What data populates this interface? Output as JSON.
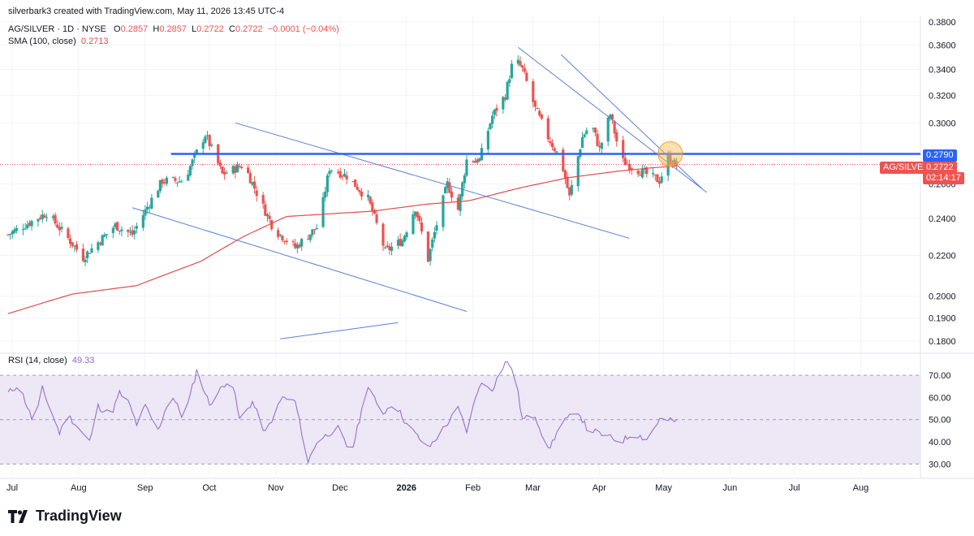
{
  "header": {
    "created_by": "silverbark3 created with TradingView.com, May 11, 2026 13:45 UTC-4",
    "symbol_line": "AG/SILVER · 1D · NYSE",
    "ohlc": {
      "o_label": "O",
      "o": "0.2857",
      "h_label": "H",
      "h": "0.2857",
      "l_label": "L",
      "l": "0.2722",
      "c_label": "C",
      "c": "0.2722",
      "chg": "−0.0001 (−0.04%)"
    },
    "sma_label": "SMA (100, close)",
    "sma_value": "0.2713",
    "rsi_label": "RSI (14, close)",
    "rsi_value": "49.33"
  },
  "price_tags": {
    "resistance": "0.2790",
    "symbol": "AG/SILVER",
    "last": "0.2722",
    "countdown": "02:14:17"
  },
  "brand": {
    "name": "TradingView"
  },
  "colors": {
    "up": "#26a69a",
    "down": "#ef5350",
    "sma": "#e04c4c",
    "trend": "#5b7fd6",
    "resistance": "#2962ff",
    "rsi": "#8e68c4",
    "rsi_band": "#ede7f6"
  },
  "chart_data": [
    {
      "type": "candlestick",
      "symbol": "AG/SILVER",
      "interval": "1D",
      "x_ticks": [
        "Jul",
        "Aug",
        "Sep",
        "Oct",
        "Nov",
        "Dec",
        "2026",
        "Feb",
        "Mar",
        "Apr",
        "May",
        "Jun",
        "Jul",
        "Aug"
      ],
      "y_ticks": [
        "0.3800",
        "0.3600",
        "0.3400",
        "0.3200",
        "0.3000",
        "0.2600",
        "0.2400",
        "0.2200",
        "0.2000",
        "0.1900",
        "0.1800"
      ],
      "y_scale": "log",
      "ylim": [
        0.176,
        0.385
      ],
      "anchors": [
        {
          "d": 0,
          "p": 0.231
        },
        {
          "d": 18,
          "p": 0.243
        },
        {
          "d": 35,
          "p": 0.219
        },
        {
          "d": 50,
          "p": 0.236
        },
        {
          "d": 58,
          "p": 0.231
        },
        {
          "d": 72,
          "p": 0.262
        },
        {
          "d": 82,
          "p": 0.262
        },
        {
          "d": 92,
          "p": 0.292
        },
        {
          "d": 100,
          "p": 0.266
        },
        {
          "d": 110,
          "p": 0.272
        },
        {
          "d": 118,
          "p": 0.249
        },
        {
          "d": 124,
          "p": 0.234
        },
        {
          "d": 134,
          "p": 0.224
        },
        {
          "d": 145,
          "p": 0.236
        },
        {
          "d": 150,
          "p": 0.27
        },
        {
          "d": 158,
          "p": 0.265
        },
        {
          "d": 168,
          "p": 0.251
        },
        {
          "d": 176,
          "p": 0.222
        },
        {
          "d": 184,
          "p": 0.228
        },
        {
          "d": 190,
          "p": 0.246
        },
        {
          "d": 196,
          "p": 0.218
        },
        {
          "d": 205,
          "p": 0.26
        },
        {
          "d": 210,
          "p": 0.245
        },
        {
          "d": 214,
          "p": 0.275
        },
        {
          "d": 220,
          "p": 0.275
        },
        {
          "d": 226,
          "p": 0.305
        },
        {
          "d": 232,
          "p": 0.32
        },
        {
          "d": 236,
          "p": 0.35
        },
        {
          "d": 240,
          "p": 0.34
        },
        {
          "d": 246,
          "p": 0.31
        },
        {
          "d": 252,
          "p": 0.29
        },
        {
          "d": 258,
          "p": 0.275
        },
        {
          "d": 262,
          "p": 0.252
        },
        {
          "d": 268,
          "p": 0.29
        },
        {
          "d": 272,
          "p": 0.3
        },
        {
          "d": 276,
          "p": 0.282
        },
        {
          "d": 281,
          "p": 0.306
        },
        {
          "d": 286,
          "p": 0.275
        },
        {
          "d": 292,
          "p": 0.27
        },
        {
          "d": 298,
          "p": 0.266
        },
        {
          "d": 304,
          "p": 0.262
        },
        {
          "d": 308,
          "p": 0.276
        },
        {
          "d": 312,
          "p": 0.272
        }
      ],
      "sma": {
        "name": "SMA (100, close)",
        "points": [
          {
            "d": 0,
            "p": 0.192
          },
          {
            "d": 30,
            "p": 0.201
          },
          {
            "d": 60,
            "p": 0.205
          },
          {
            "d": 90,
            "p": 0.217
          },
          {
            "d": 110,
            "p": 0.23
          },
          {
            "d": 130,
            "p": 0.241
          },
          {
            "d": 170,
            "p": 0.244
          },
          {
            "d": 195,
            "p": 0.248
          },
          {
            "d": 215,
            "p": 0.25
          },
          {
            "d": 240,
            "p": 0.258
          },
          {
            "d": 262,
            "p": 0.264
          },
          {
            "d": 285,
            "p": 0.268
          },
          {
            "d": 300,
            "p": 0.27
          },
          {
            "d": 312,
            "p": 0.2713
          }
        ]
      },
      "resistance_level": 0.279,
      "last_price": 0.2722,
      "trendlines": [
        {
          "from": {
            "d": 106,
            "p": 0.3
          },
          "to": {
            "d": 290,
            "p": 0.229
          }
        },
        {
          "from": {
            "d": 58,
            "p": 0.246
          },
          "to": {
            "d": 214,
            "p": 0.193
          }
        },
        {
          "from": {
            "d": 127,
            "p": 0.181
          },
          "to": {
            "d": 182,
            "p": 0.188
          }
        },
        {
          "from": {
            "d": 238,
            "p": 0.358
          },
          "to": {
            "d": 326,
            "p": 0.255
          }
        },
        {
          "from": {
            "d": 258,
            "p": 0.352
          },
          "to": {
            "d": 324,
            "p": 0.257
          }
        }
      ],
      "highlight_circle": {
        "d": 309,
        "p": 0.279
      }
    },
    {
      "type": "line",
      "name": "RSI (14, close)",
      "y_ticks": [
        "70.00",
        "60.00",
        "50.00",
        "40.00",
        "30.00"
      ],
      "ylim": [
        25,
        77
      ],
      "band": [
        30,
        70
      ],
      "anchors": [
        {
          "d": 0,
          "p": 62
        },
        {
          "d": 5,
          "p": 66
        },
        {
          "d": 12,
          "p": 48
        },
        {
          "d": 16,
          "p": 64
        },
        {
          "d": 24,
          "p": 44
        },
        {
          "d": 28,
          "p": 52
        },
        {
          "d": 38,
          "p": 40
        },
        {
          "d": 42,
          "p": 56
        },
        {
          "d": 48,
          "p": 52
        },
        {
          "d": 52,
          "p": 62
        },
        {
          "d": 56,
          "p": 58
        },
        {
          "d": 60,
          "p": 48
        },
        {
          "d": 64,
          "p": 56
        },
        {
          "d": 70,
          "p": 45
        },
        {
          "d": 76,
          "p": 62
        },
        {
          "d": 82,
          "p": 50
        },
        {
          "d": 88,
          "p": 72
        },
        {
          "d": 94,
          "p": 57
        },
        {
          "d": 104,
          "p": 70
        },
        {
          "d": 108,
          "p": 50
        },
        {
          "d": 114,
          "p": 58
        },
        {
          "d": 120,
          "p": 44
        },
        {
          "d": 128,
          "p": 60
        },
        {
          "d": 134,
          "p": 58
        },
        {
          "d": 140,
          "p": 31
        },
        {
          "d": 144,
          "p": 40
        },
        {
          "d": 150,
          "p": 44
        },
        {
          "d": 154,
          "p": 46
        },
        {
          "d": 160,
          "p": 34
        },
        {
          "d": 168,
          "p": 66
        },
        {
          "d": 174,
          "p": 52
        },
        {
          "d": 180,
          "p": 58
        },
        {
          "d": 186,
          "p": 48
        },
        {
          "d": 196,
          "p": 37
        },
        {
          "d": 204,
          "p": 47
        },
        {
          "d": 210,
          "p": 55
        },
        {
          "d": 214,
          "p": 45
        },
        {
          "d": 220,
          "p": 66
        },
        {
          "d": 226,
          "p": 64
        },
        {
          "d": 232,
          "p": 76
        },
        {
          "d": 236,
          "p": 73
        },
        {
          "d": 240,
          "p": 50
        },
        {
          "d": 246,
          "p": 52
        },
        {
          "d": 252,
          "p": 36
        },
        {
          "d": 258,
          "p": 48
        },
        {
          "d": 266,
          "p": 54
        },
        {
          "d": 270,
          "p": 46
        },
        {
          "d": 278,
          "p": 43
        },
        {
          "d": 286,
          "p": 40
        },
        {
          "d": 292,
          "p": 44
        },
        {
          "d": 298,
          "p": 41
        },
        {
          "d": 304,
          "p": 50
        },
        {
          "d": 312,
          "p": 49.3
        }
      ]
    }
  ]
}
